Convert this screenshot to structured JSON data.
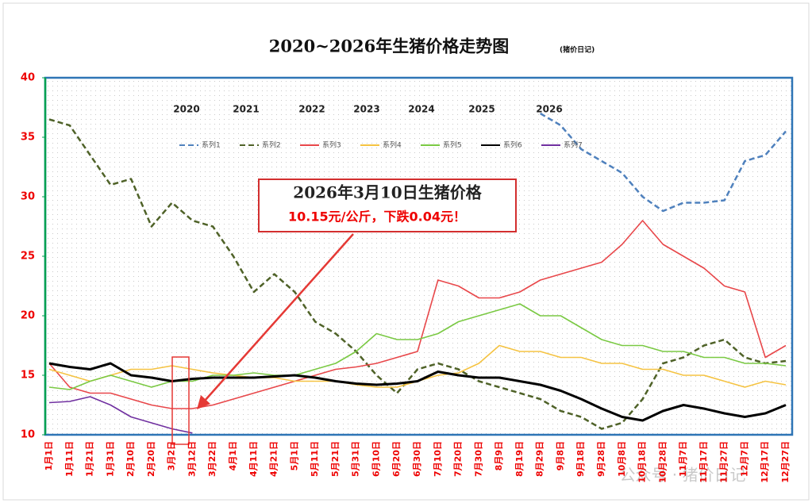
{
  "chart_data": {
    "type": "line",
    "title": "2020~2026年生猪价格走势图",
    "subtitle": "(猪价日记)",
    "categories": [
      "1月1日",
      "1月11日",
      "1月21日",
      "1月31日",
      "2月10日",
      "2月20日",
      "3月2日",
      "3月12日",
      "3月22日",
      "4月1日",
      "4月11日",
      "4月21日",
      "5月1日",
      "5月11日",
      "5月21日",
      "5月31日",
      "6月10日",
      "6月20日",
      "6月30日",
      "7月10日",
      "7月20日",
      "7月30日",
      "8月9日",
      "8月19日",
      "8月29日",
      "9月8日",
      "9月18日",
      "9月28日",
      "10月8日",
      "10月18日",
      "10月28日",
      "11月7日",
      "11月17日",
      "11月27日",
      "12月7日",
      "12月17日",
      "12月27日"
    ],
    "series": [
      {
        "name": "系列1",
        "color": "#4f81bd",
        "dash": "dashed",
        "values": [
          null,
          null,
          null,
          null,
          null,
          null,
          null,
          null,
          null,
          null,
          null,
          null,
          null,
          null,
          null,
          null,
          null,
          null,
          null,
          null,
          null,
          null,
          null,
          null,
          37,
          36,
          34,
          33,
          32,
          30,
          28.8,
          29.5,
          29.5,
          29.7,
          33,
          33.5,
          35.5
        ]
      },
      {
        "name": "系列2",
        "color": "#4f6228",
        "dash": "dashed",
        "values": [
          36.5,
          36,
          33.5,
          31,
          31.5,
          27.5,
          29.5,
          28,
          27.5,
          25,
          22,
          23.5,
          22,
          19.5,
          18.5,
          17,
          15,
          13.5,
          15.5,
          16,
          15.5,
          14.5,
          14,
          13.5,
          13,
          12,
          11.5,
          10.5,
          11,
          13,
          16,
          16.5,
          17.5,
          18,
          16.5,
          16,
          16.2
        ]
      },
      {
        "name": "系列3",
        "color": "#e8474a",
        "dash": "solid",
        "values": [
          16,
          14,
          13.5,
          13.5,
          13,
          12.5,
          12.2,
          12.2,
          12.5,
          13,
          13.5,
          14,
          14.5,
          15,
          15.5,
          15.7,
          16,
          16.5,
          17,
          23,
          22.5,
          21.5,
          21.5,
          22,
          23,
          23.5,
          24,
          24.5,
          26,
          28,
          26,
          25,
          24,
          22.5,
          22,
          16.5,
          17.5
        ]
      },
      {
        "name": "系列4",
        "color": "#f5c342",
        "dash": "solid",
        "values": [
          15.5,
          15,
          14.5,
          15,
          15.5,
          15.5,
          15.8,
          15.5,
          15.2,
          15,
          14.8,
          14.8,
          14.5,
          14.5,
          14.5,
          14.2,
          14,
          14,
          14.5,
          15,
          15.2,
          16,
          17.5,
          17,
          17,
          16.5,
          16.5,
          16,
          16,
          15.5,
          15.5,
          15,
          15,
          14.5,
          14,
          14.5,
          14.2
        ]
      },
      {
        "name": "系列5",
        "color": "#7ac943",
        "dash": "solid",
        "values": [
          14,
          13.8,
          14.5,
          15,
          14.5,
          14,
          14.5,
          14.5,
          15,
          15,
          15.2,
          15,
          15,
          15.5,
          16,
          17,
          18.5,
          18,
          18,
          18.5,
          19.5,
          20,
          20.5,
          21,
          20,
          20,
          19,
          18,
          17.5,
          17.5,
          17,
          17,
          16.5,
          16.5,
          16,
          16,
          15.8
        ]
      },
      {
        "name": "系列6",
        "color": "#000000",
        "dash": "solid",
        "values": [
          16,
          15.7,
          15.5,
          16,
          15,
          14.8,
          14.5,
          14.7,
          14.8,
          14.8,
          14.8,
          14.9,
          15,
          14.8,
          14.5,
          14.3,
          14.2,
          14.3,
          14.5,
          15.3,
          15,
          14.8,
          14.8,
          14.5,
          14.2,
          13.7,
          13,
          12.2,
          11.5,
          11.2,
          12,
          12.5,
          12.2,
          11.8,
          11.5,
          11.8,
          12.5
        ]
      },
      {
        "name": "系列7",
        "color": "#7030a0",
        "dash": "solid",
        "values": [
          12.7,
          12.8,
          13.2,
          12.5,
          11.5,
          11,
          10.5,
          10.15,
          null,
          null,
          null,
          null,
          null,
          null,
          null,
          null,
          null,
          null,
          null,
          null,
          null,
          null,
          null,
          null,
          null,
          null,
          null,
          null,
          null,
          null,
          null,
          null,
          null,
          null,
          null,
          null,
          null
        ]
      }
    ],
    "ylim": [
      10,
      40
    ],
    "yticks": [
      10,
      15,
      20,
      25,
      30,
      35,
      40
    ],
    "year_labels": [
      "2020",
      "2021",
      "2022",
      "2023",
      "2024",
      "2025",
      "2026"
    ],
    "annotation": [
      "2026年3月10日生猪价格",
      "10.15元/公斤，下跌0.04元！"
    ],
    "watermark": "公众号 · 猪价日记"
  }
}
